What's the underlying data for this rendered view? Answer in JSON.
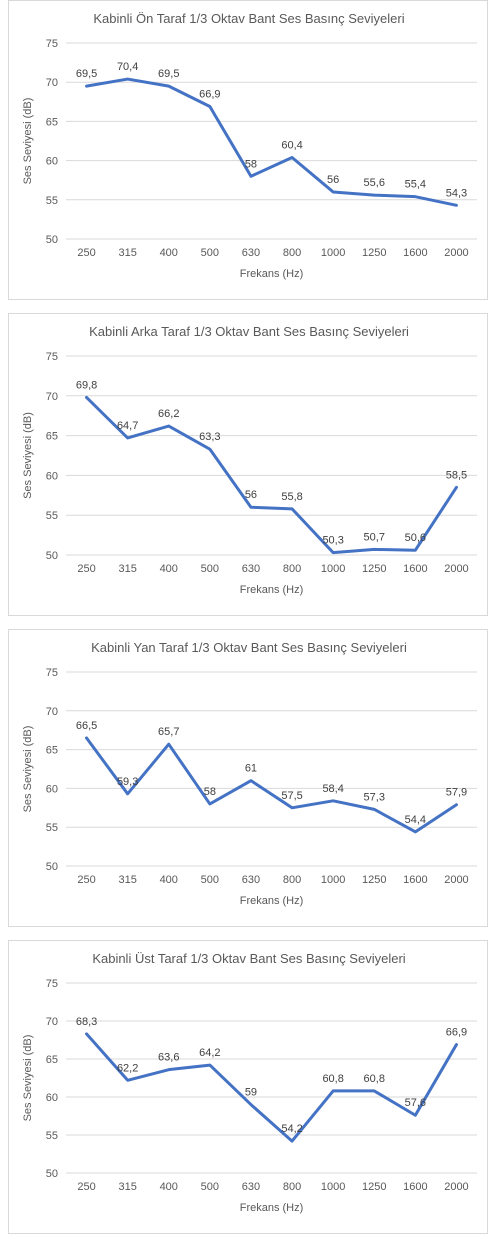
{
  "chart_data": [
    {
      "type": "line",
      "title": "Kabinli Ön Taraf 1/3 Oktav Bant Ses Basınç Seviyeleri",
      "xlabel": "Frekans (Hz)",
      "ylabel": "Ses Seviyesi (dB)",
      "ylim": [
        50,
        75
      ],
      "yticks": [
        "50",
        "55",
        "60",
        "65",
        "70",
        "75"
      ],
      "grid": true,
      "categories": [
        "250",
        "315",
        "400",
        "500",
        "630",
        "800",
        "1000",
        "1250",
        "1600",
        "2000"
      ],
      "values": [
        69.5,
        70.4,
        69.5,
        66.9,
        58,
        60.4,
        56,
        55.6,
        55.4,
        54.3
      ],
      "labels": [
        "69,5",
        "70,4",
        "69,5",
        "66,9",
        "58",
        "60,4",
        "56",
        "55,6",
        "55,4",
        "54,3"
      ],
      "color": "#4472c4"
    },
    {
      "type": "line",
      "title": "Kabinli Arka Taraf 1/3 Oktav Bant Ses Basınç Seviyeleri",
      "xlabel": "Frekans (Hz)",
      "ylabel": "Ses Seviyesi (dB)",
      "ylim": [
        50,
        75
      ],
      "yticks": [
        "50",
        "55",
        "60",
        "65",
        "70",
        "75"
      ],
      "grid": true,
      "categories": [
        "250",
        "315",
        "400",
        "500",
        "630",
        "800",
        "1000",
        "1250",
        "1600",
        "2000"
      ],
      "values": [
        69.8,
        64.7,
        66.2,
        63.3,
        56,
        55.8,
        50.3,
        50.7,
        50.6,
        58.5
      ],
      "labels": [
        "69,8",
        "64,7",
        "66,2",
        "63,3",
        "56",
        "55,8",
        "50,3",
        "50,7",
        "50,6",
        "58,5"
      ],
      "color": "#4472c4"
    },
    {
      "type": "line",
      "title": "Kabinli Yan Taraf 1/3 Oktav Bant Ses Basınç Seviyeleri",
      "xlabel": "Frekans (Hz)",
      "ylabel": "Ses Seviyesi (dB)",
      "ylim": [
        50,
        75
      ],
      "yticks": [
        "50",
        "55",
        "60",
        "65",
        "70",
        "75"
      ],
      "grid": true,
      "categories": [
        "250",
        "315",
        "400",
        "500",
        "630",
        "800",
        "1000",
        "1250",
        "1600",
        "2000"
      ],
      "values": [
        66.5,
        59.3,
        65.7,
        58,
        61,
        57.5,
        58.4,
        57.3,
        54.4,
        57.9
      ],
      "labels": [
        "66,5",
        "59,3",
        "65,7",
        "58",
        "61",
        "57,5",
        "58,4",
        "57,3",
        "54,4",
        "57,9"
      ],
      "color": "#4472c4"
    },
    {
      "type": "line",
      "title": "Kabinli Üst Taraf 1/3 Oktav Bant Ses Basınç Seviyeleri",
      "xlabel": "Frekans (Hz)",
      "ylabel": "Ses Seviyesi (dB)",
      "ylim": [
        50,
        75
      ],
      "yticks": [
        "50",
        "55",
        "60",
        "65",
        "70",
        "75"
      ],
      "grid": true,
      "categories": [
        "250",
        "315",
        "400",
        "500",
        "630",
        "800",
        "1000",
        "1250",
        "1600",
        "2000"
      ],
      "values": [
        68.3,
        62.2,
        63.6,
        64.2,
        59,
        54.2,
        60.8,
        60.8,
        57.6,
        66.9
      ],
      "labels": [
        "68,3",
        "62,2",
        "63,6",
        "64,2",
        "59",
        "54,2",
        "60,8",
        "60,8",
        "57,6",
        "66,9"
      ],
      "color": "#4472c4"
    }
  ]
}
